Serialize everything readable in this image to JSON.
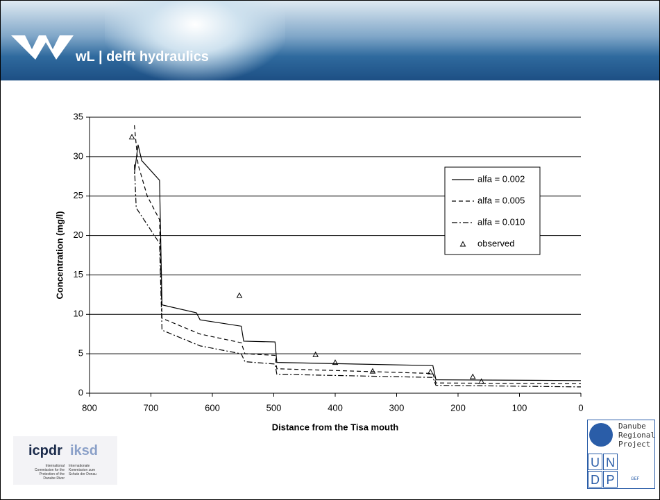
{
  "header": {
    "brand": "wL | delft hydraulics"
  },
  "chart_data": {
    "type": "line",
    "xlabel": "Distance from the Tisa mouth",
    "ylabel": "Concentration (mg/l)",
    "xlim": [
      800,
      0
    ],
    "xticks": [
      800,
      700,
      600,
      500,
      400,
      300,
      200,
      100,
      0
    ],
    "ylim": [
      0,
      35
    ],
    "yticks": [
      0,
      5,
      10,
      15,
      20,
      25,
      30,
      35
    ],
    "grid": true,
    "legend": "upper right",
    "series": [
      {
        "name": "alfa = 0.002",
        "color": "#000000",
        "style": "solid",
        "x": [
          727,
          721,
          715,
          686,
          682,
          626,
          620,
          553,
          549,
          498,
          495,
          241,
          236,
          0
        ],
        "values": [
          27.8,
          31.5,
          29.5,
          27,
          11.2,
          10.2,
          9.3,
          8.5,
          6.6,
          6.5,
          3.9,
          3.5,
          1.7,
          1.6
        ]
      },
      {
        "name": "alfa = 0.005",
        "color": "#000000",
        "style": "dashed",
        "x": [
          727,
          721,
          706,
          686,
          682,
          620,
          553,
          547,
          498,
          495,
          241,
          236,
          0
        ],
        "values": [
          34,
          29,
          25,
          22,
          9.5,
          7.5,
          6.4,
          5,
          4.8,
          3.1,
          2.5,
          1.3,
          1.2
        ]
      },
      {
        "name": "alfa = 0.010",
        "color": "#000000",
        "style": "dashdot",
        "x": [
          727,
          724,
          686,
          682,
          620,
          553,
          547,
          498,
          495,
          241,
          236,
          0
        ],
        "values": [
          29,
          23.5,
          19,
          8,
          6,
          5,
          4,
          3.7,
          2.4,
          2,
          1,
          0.8
        ]
      },
      {
        "name": "observed",
        "color": "#000000",
        "style": "triangle",
        "x": [
          731,
          556,
          432,
          400,
          339,
          245,
          176,
          162
        ],
        "values": [
          32.5,
          12.4,
          4.9,
          3.9,
          2.8,
          2.7,
          2.1,
          1.5
        ]
      }
    ]
  },
  "logos": {
    "icpdr": "icpdr",
    "iksd": "iksd",
    "icpdr_small": "International Commission for the Protection of the Danube River",
    "iksd_small": "Internationale Kommission zum Schutz der Donau",
    "drp": "Danube Regional Project",
    "undp": [
      "U",
      "N",
      "D",
      "P"
    ],
    "gef": "GEF"
  }
}
